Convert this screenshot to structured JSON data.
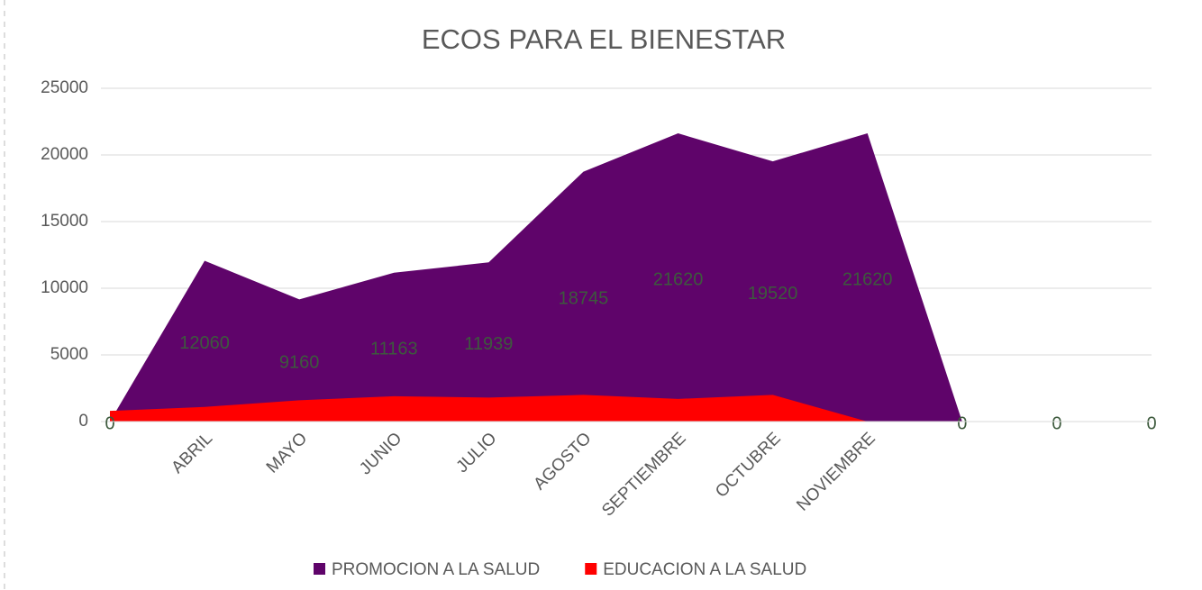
{
  "chart_data": {
    "type": "area",
    "title": "ECOS PARA EL BIENESTAR",
    "categories": [
      null,
      "ABRIL",
      "MAYO",
      "JUNIO",
      "JULIO",
      "AGOSTO",
      "SEPTIEMBRE",
      "OCTUBRE",
      "NOVIEMBRE",
      null,
      null,
      null
    ],
    "series": [
      {
        "name": "PROMOCION A LA SALUD",
        "color": "#5f046a",
        "values": [
          0,
          12060,
          9160,
          11163,
          11939,
          18745,
          21620,
          19520,
          21620,
          0,
          0,
          0
        ],
        "data_labels": true
      },
      {
        "name": "EDUCACION A LA SALUD",
        "color": "#ff0000",
        "values": [
          800,
          1100,
          1600,
          1900,
          1800,
          2000,
          1700,
          2000,
          0,
          0,
          0,
          0
        ],
        "data_labels": false
      }
    ],
    "ylim": [
      0,
      25000
    ],
    "yticks": [
      0,
      5000,
      10000,
      15000,
      20000,
      25000
    ],
    "grid": true,
    "legend": "bottom"
  }
}
